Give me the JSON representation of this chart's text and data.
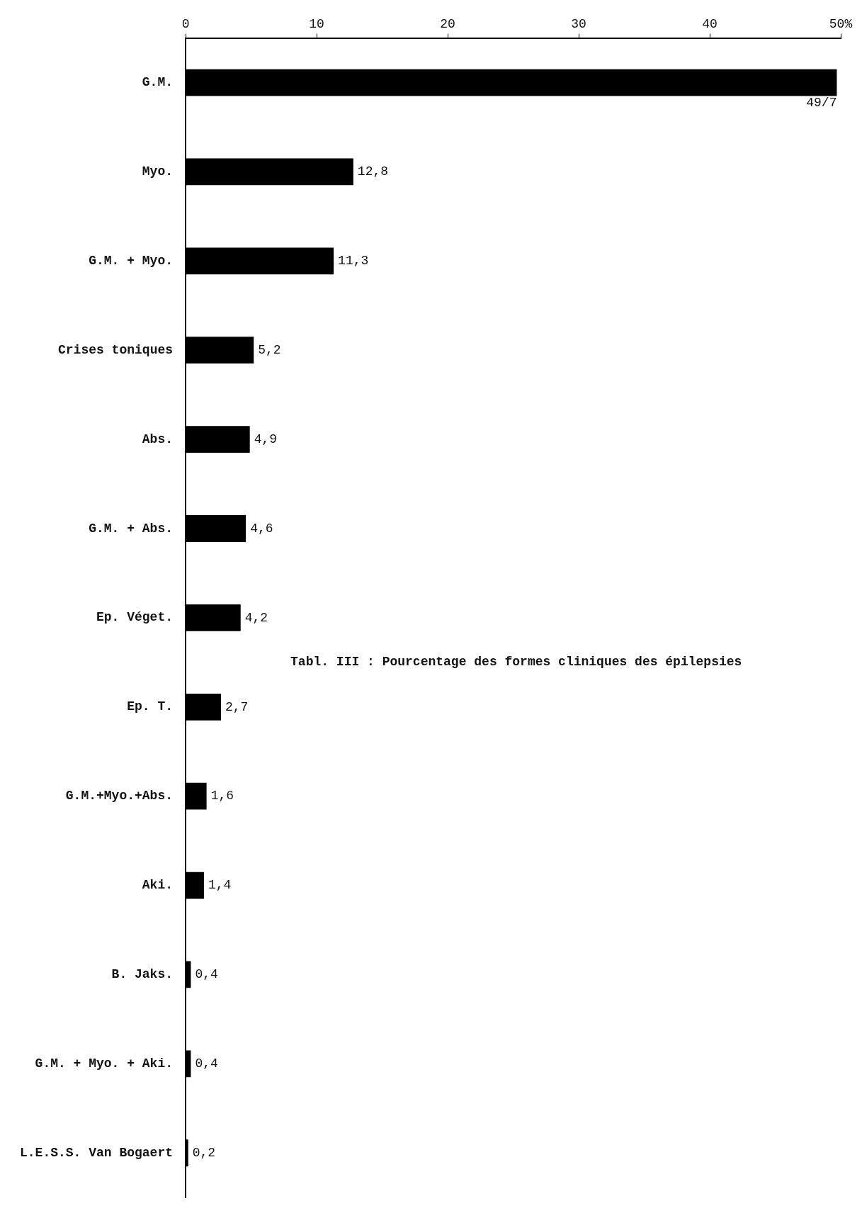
{
  "chart_data": {
    "type": "bar",
    "orientation": "horizontal",
    "categories": [
      "G.M.",
      "Myo.",
      "G.M. + Myo.",
      "Crises toniques",
      "Abs.",
      "G.M. + Abs.",
      "Ep. Véget.",
      "Ep. T.",
      "G.M.+Myo.+Abs.",
      "Aki.",
      "B. Jaks.",
      "G.M. + Myo. + Aki.",
      "L.E.S.S. Van Bogaert"
    ],
    "values": [
      49.7,
      12.8,
      11.3,
      5.2,
      4.9,
      4.6,
      4.2,
      2.7,
      1.6,
      1.4,
      0.4,
      0.4,
      0.2
    ],
    "value_labels": [
      "49/7",
      "12,8",
      "11,3",
      "5,2",
      "4,9",
      "4,6",
      "4,2",
      "2,7",
      "1,6",
      "1,4",
      "0,4",
      "0,4",
      "0,2"
    ],
    "color": "#000000",
    "xlim": [
      0,
      50
    ],
    "xticks": [
      0,
      10,
      20,
      30,
      40,
      {
        "value": 50,
        "label": "50%"
      }
    ],
    "grid": false,
    "legend": false,
    "annotations": [
      "Tabl. III : Pourcentage des formes cliniques des épilepsies"
    ]
  }
}
